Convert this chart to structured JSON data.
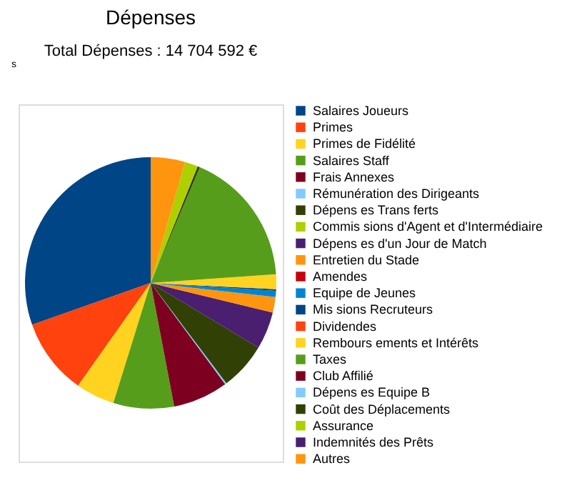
{
  "chart_data": {
    "type": "pie",
    "title": "Dépenses",
    "subtitle": "Total Dépenses : 14 704 592 €",
    "annotations": [
      "s"
    ],
    "legend": "right",
    "categories": [
      "Salaires Joueurs",
      "Primes",
      "Primes de Fidélité",
      "Salaires Staff",
      "Frais Annexes",
      "Rémunération des Dirigeants",
      "Dépens es Trans ferts",
      "Commis sions d'Agent et d'Intermédiaire",
      "Dépens es d'un Jour de Match",
      "Entretien du Stade",
      "Amendes",
      "Equipe de Jeunes",
      "Mis sions Recruteurs",
      "Dividendes",
      "Rembours ements et Intérêts",
      "Taxes",
      "Club Affilié",
      "Dépens es Equipe B",
      "Coût des Déplacements",
      "Assurance",
      "Indemnités des Prêts",
      "Autres"
    ],
    "values": [
      30.4,
      9.8,
      5.0,
      7.8,
      7.1,
      0.2,
      6.1,
      0,
      4.8,
      2.0,
      0,
      0.8,
      0.2,
      0,
      1.9,
      17.5,
      0,
      0,
      0.3,
      1.7,
      0,
      4.4
    ],
    "colors": [
      "#004586",
      "#ff420e",
      "#ffd320",
      "#579d1c",
      "#7e0021",
      "#83caff",
      "#314004",
      "#aecf00",
      "#4b1f6f",
      "#ff950e",
      "#c5000b",
      "#0084d1",
      "#004586",
      "#ff420e",
      "#ffd320",
      "#579d1c",
      "#7e0021",
      "#83caff",
      "#314004",
      "#aecf00",
      "#4b1f6f",
      "#ff950e"
    ]
  }
}
